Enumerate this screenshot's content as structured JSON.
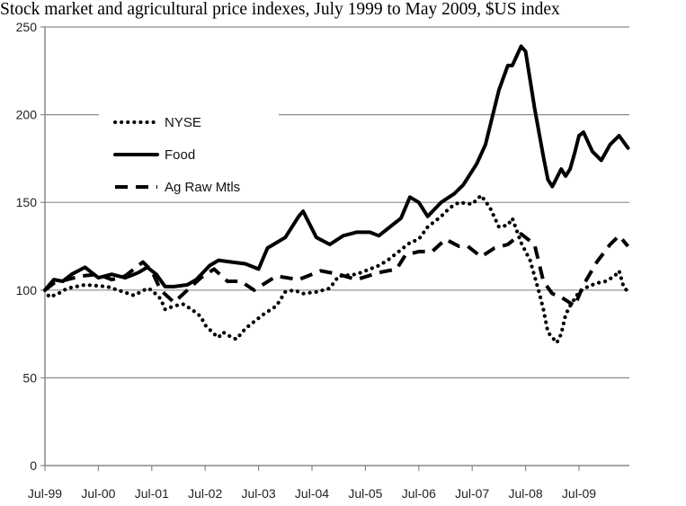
{
  "chart_data": {
    "type": "line",
    "title": "Stock market and agricultural price indexes, July 1999 to May 2009, $US index",
    "xlabel": "",
    "ylabel": "",
    "ylim": [
      0,
      250
    ],
    "yticks": [
      "0",
      "50",
      "100",
      "150",
      "200",
      "250"
    ],
    "xticks": [
      "Jul-99",
      "Jul-00",
      "Jul-01",
      "Jul-02",
      "Jul-03",
      "Jul-04",
      "Jul-05",
      "Jul-06",
      "Jul-07",
      "Jul-08",
      "Jul-09"
    ],
    "grid": true,
    "legend": "upper-left",
    "colors": {
      "lines": "#000000",
      "grid": "#8c8c8c"
    },
    "series": [
      {
        "name": "NYSE",
        "style": "dotted",
        "points": [
          [
            "1999-07",
            100
          ],
          [
            "1999-08",
            96
          ],
          [
            "1999-10",
            98
          ],
          [
            "1999-12",
            101
          ],
          [
            "2000-02",
            102
          ],
          [
            "2000-04",
            103
          ],
          [
            "2000-09",
            102
          ],
          [
            "2001-03",
            97
          ],
          [
            "2001-06",
            101
          ],
          [
            "2001-07",
            100
          ],
          [
            "2001-09",
            95
          ],
          [
            "2001-10",
            89
          ],
          [
            "2001-12",
            91
          ],
          [
            "2002-02",
            92
          ],
          [
            "2002-04",
            89
          ],
          [
            "2002-06",
            85
          ],
          [
            "2002-07",
            80
          ],
          [
            "2002-09",
            75
          ],
          [
            "2002-10",
            73
          ],
          [
            "2002-11",
            76
          ],
          [
            "2003-01",
            73
          ],
          [
            "2003-02",
            72
          ],
          [
            "2003-04",
            78
          ],
          [
            "2003-06",
            82
          ],
          [
            "2003-08",
            86
          ],
          [
            "2003-11",
            91
          ],
          [
            "2004-01",
            99
          ],
          [
            "2004-03",
            100
          ],
          [
            "2004-05",
            98
          ],
          [
            "2004-08",
            99
          ],
          [
            "2004-11",
            101
          ],
          [
            "2005-01",
            108
          ],
          [
            "2005-05",
            109
          ],
          [
            "2005-08",
            112
          ],
          [
            "2005-10",
            114
          ],
          [
            "2005-12",
            117
          ],
          [
            "2006-03",
            123
          ],
          [
            "2006-05",
            127
          ],
          [
            "2006-07",
            129
          ],
          [
            "2006-09",
            136
          ],
          [
            "2006-12",
            142
          ],
          [
            "2007-02",
            147
          ],
          [
            "2007-04",
            150
          ],
          [
            "2007-07",
            149
          ],
          [
            "2007-09",
            154
          ],
          [
            "2007-11",
            147
          ],
          [
            "2008-01",
            136
          ],
          [
            "2008-03",
            137
          ],
          [
            "2008-04",
            141
          ],
          [
            "2008-06",
            127
          ],
          [
            "2008-08",
            117
          ],
          [
            "2008-10",
            99
          ],
          [
            "2008-11",
            89
          ],
          [
            "2008-12",
            76
          ],
          [
            "2009-02",
            70
          ],
          [
            "2009-03",
            75
          ],
          [
            "2009-04",
            86
          ],
          [
            "2009-05",
            91
          ],
          [
            "2009-07",
            99
          ],
          [
            "2009-09",
            102
          ],
          [
            "2009-11",
            104
          ],
          [
            "2010-01",
            105
          ],
          [
            "2010-03",
            108
          ],
          [
            "2010-04",
            111
          ],
          [
            "2010-05",
            102
          ],
          [
            "2010-06",
            99
          ]
        ]
      },
      {
        "name": "Food",
        "style": "solid",
        "points": [
          [
            "1999-07",
            100
          ],
          [
            "1999-09",
            106
          ],
          [
            "1999-11",
            105
          ],
          [
            "2000-01",
            109
          ],
          [
            "2000-04",
            113
          ],
          [
            "2000-07",
            107
          ],
          [
            "2000-10",
            109
          ],
          [
            "2001-01",
            107
          ],
          [
            "2001-04",
            110
          ],
          [
            "2001-06",
            113
          ],
          [
            "2001-08",
            109
          ],
          [
            "2001-10",
            102
          ],
          [
            "2001-12",
            102
          ],
          [
            "2002-03",
            103
          ],
          [
            "2002-05",
            106
          ],
          [
            "2002-08",
            114
          ],
          [
            "2002-10",
            117
          ],
          [
            "2003-01",
            116
          ],
          [
            "2003-04",
            115
          ],
          [
            "2003-07",
            112
          ],
          [
            "2003-09",
            124
          ],
          [
            "2004-01",
            130
          ],
          [
            "2004-04",
            142
          ],
          [
            "2004-05",
            145
          ],
          [
            "2004-08",
            130
          ],
          [
            "2004-11",
            126
          ],
          [
            "2005-02",
            131
          ],
          [
            "2005-05",
            133
          ],
          [
            "2005-08",
            133
          ],
          [
            "2005-10",
            131
          ],
          [
            "2005-12",
            135
          ],
          [
            "2006-03",
            141
          ],
          [
            "2006-05",
            153
          ],
          [
            "2006-07",
            150
          ],
          [
            "2006-09",
            142
          ],
          [
            "2006-12",
            150
          ],
          [
            "2007-03",
            155
          ],
          [
            "2007-05",
            160
          ],
          [
            "2007-08",
            172
          ],
          [
            "2007-10",
            183
          ],
          [
            "2008-01",
            214
          ],
          [
            "2008-03",
            228
          ],
          [
            "2008-04",
            228
          ],
          [
            "2008-06",
            239
          ],
          [
            "2008-07",
            236
          ],
          [
            "2008-09",
            204
          ],
          [
            "2008-11",
            176
          ],
          [
            "2008-12",
            163
          ],
          [
            "2009-01",
            159
          ],
          [
            "2009-03",
            169
          ],
          [
            "2009-04",
            165
          ],
          [
            "2009-05",
            169
          ],
          [
            "2009-06",
            178
          ],
          [
            "2009-07",
            188
          ],
          [
            "2009-08",
            190
          ],
          [
            "2009-10",
            179
          ],
          [
            "2009-12",
            174
          ],
          [
            "2010-02",
            183
          ],
          [
            "2010-04",
            188
          ],
          [
            "2010-06",
            181
          ]
        ]
      },
      {
        "name": "Ag Raw Mtls",
        "style": "dashed",
        "points": [
          [
            "1999-07",
            100
          ],
          [
            "1999-09",
            104
          ],
          [
            "1999-12",
            106
          ],
          [
            "2000-03",
            108
          ],
          [
            "2000-07",
            109
          ],
          [
            "2000-10",
            106
          ],
          [
            "2001-01",
            108
          ],
          [
            "2001-05",
            116
          ],
          [
            "2001-07",
            111
          ],
          [
            "2001-09",
            100
          ],
          [
            "2001-12",
            93
          ],
          [
            "2002-03",
            100
          ],
          [
            "2002-06",
            107
          ],
          [
            "2002-09",
            112
          ],
          [
            "2002-12",
            105
          ],
          [
            "2003-03",
            105
          ],
          [
            "2003-06",
            100
          ],
          [
            "2003-11",
            108
          ],
          [
            "2004-04",
            106
          ],
          [
            "2004-09",
            111
          ],
          [
            "2005-01",
            109
          ],
          [
            "2005-05",
            106
          ],
          [
            "2005-10",
            110
          ],
          [
            "2006-02",
            112
          ],
          [
            "2006-04",
            120
          ],
          [
            "2006-07",
            122
          ],
          [
            "2006-10",
            122
          ],
          [
            "2007-01",
            129
          ],
          [
            "2007-04",
            125
          ],
          [
            "2007-06",
            125
          ],
          [
            "2007-09",
            119
          ],
          [
            "2007-12",
            124
          ],
          [
            "2008-03",
            126
          ],
          [
            "2008-06",
            132
          ],
          [
            "2008-09",
            126
          ],
          [
            "2008-11",
            105
          ],
          [
            "2009-01",
            98
          ],
          [
            "2009-03",
            96
          ],
          [
            "2009-06",
            91
          ],
          [
            "2009-08",
            103
          ],
          [
            "2009-11",
            116
          ],
          [
            "2010-02",
            126
          ],
          [
            "2010-04",
            131
          ],
          [
            "2010-06",
            125
          ]
        ]
      }
    ]
  }
}
